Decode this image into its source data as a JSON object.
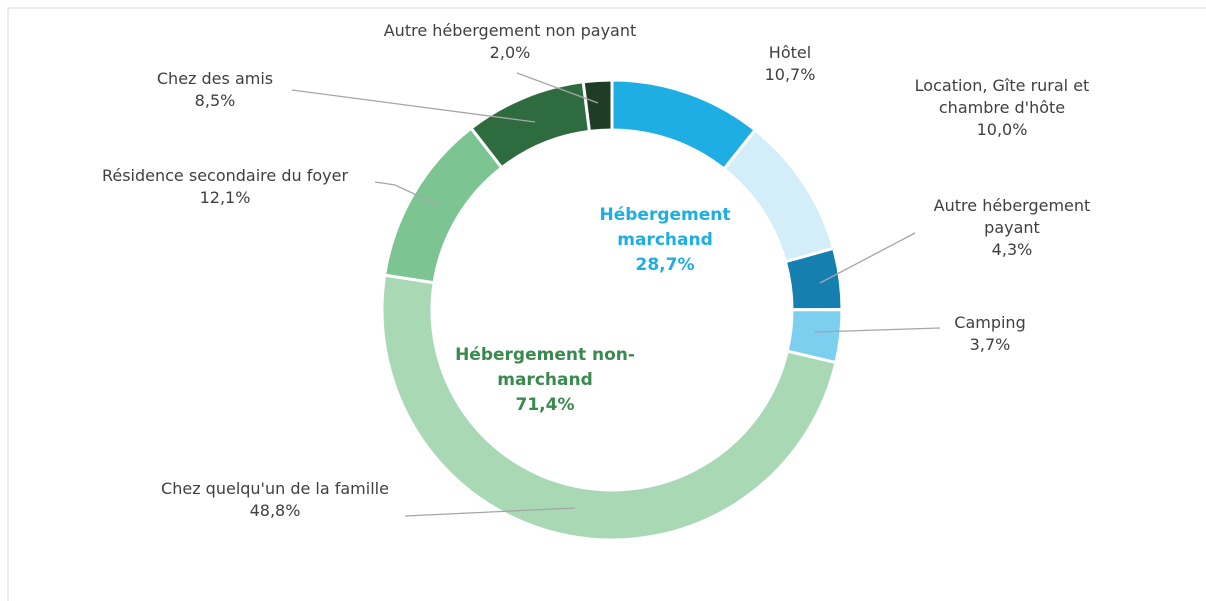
{
  "chart_data": {
    "type": "donut",
    "categories": [
      "Hôtel",
      "Location, Gîte rural et chambre d'hôte",
      "Autre hébergement payant",
      "Camping",
      "Chez quelqu'un de la famille",
      "Résidence secondaire du foyer",
      "Chez des amis",
      "Autre hébergement non payant"
    ],
    "values": [
      10.7,
      10.0,
      4.3,
      3.7,
      48.8,
      12.1,
      8.5,
      2.0
    ],
    "value_labels": [
      "10,7%",
      "10,0%",
      "4,3%",
      "3,7%",
      "48,8%",
      "12,1%",
      "8,5%",
      "2,0%"
    ],
    "colors": [
      "#1eaee4",
      "#d3eef9",
      "#1580b0",
      "#7ccfef",
      "#a9d8b5",
      "#7cc491",
      "#2e6b3e",
      "#1f3d26"
    ],
    "groups": [
      {
        "name": "Hébergement marchand",
        "value": 28.7,
        "value_label": "28,7%",
        "color": "#1eaee4"
      },
      {
        "name": "Hébergement non-marchand",
        "value": 71.4,
        "value_label": "71,4%",
        "color": "#3a8a50"
      }
    ]
  }
}
